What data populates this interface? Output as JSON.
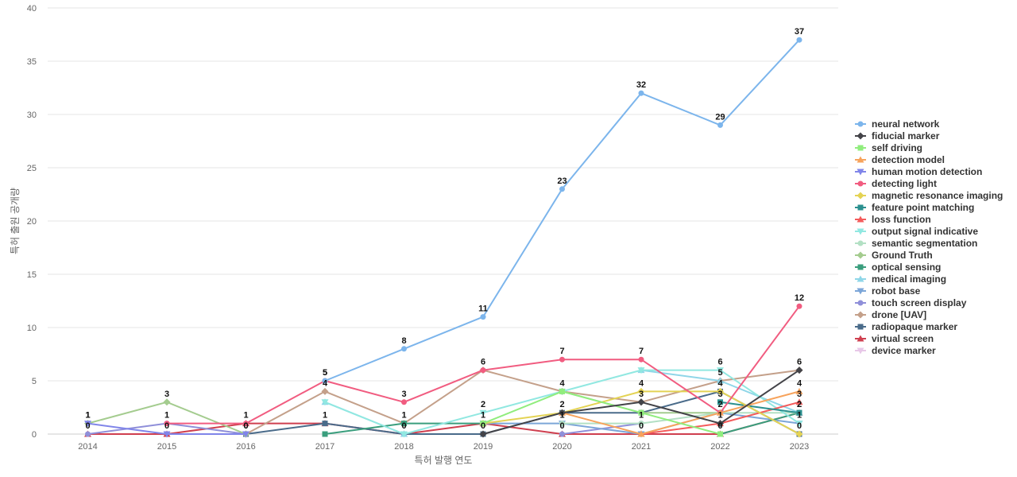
{
  "chart_data": {
    "type": "line",
    "xlabel": "특허 발행 연도",
    "ylabel": "특허 출원 공개량",
    "ylim": [
      0,
      40
    ],
    "yticks": [
      0,
      5,
      10,
      15,
      20,
      25,
      30,
      35,
      40
    ],
    "grid": true,
    "legend_position": "right",
    "categories": [
      "2014",
      "2015",
      "2016",
      "2017",
      "2018",
      "2019",
      "2020",
      "2021",
      "2022",
      "2023"
    ],
    "series": [
      {
        "name": "neural network",
        "color": "#7cb5ec",
        "marker": "circle",
        "values": [
          null,
          null,
          null,
          5,
          8,
          11,
          23,
          32,
          29,
          37
        ],
        "labels": [
          null,
          null,
          null,
          5,
          8,
          11,
          23,
          32,
          29,
          37
        ]
      },
      {
        "name": "fiducial marker",
        "color": "#434348",
        "marker": "diamond",
        "values": [
          null,
          null,
          null,
          null,
          null,
          0,
          2,
          3,
          1,
          6
        ],
        "labels": [
          null,
          null,
          null,
          null,
          null,
          null,
          null,
          null,
          null,
          6
        ]
      },
      {
        "name": "self driving",
        "color": "#90ed7d",
        "marker": "square",
        "values": [
          null,
          null,
          null,
          null,
          null,
          1,
          4,
          2,
          0,
          null
        ],
        "labels": [
          null,
          null,
          null,
          null,
          null,
          1,
          4,
          null,
          null,
          null
        ]
      },
      {
        "name": "detection model",
        "color": "#f7a35c",
        "marker": "triangle",
        "values": [
          null,
          null,
          null,
          null,
          null,
          null,
          2,
          0,
          2,
          4
        ],
        "labels": [
          null,
          null,
          null,
          null,
          null,
          null,
          2,
          null,
          null,
          4
        ]
      },
      {
        "name": "human motion detection",
        "color": "#8085e9",
        "marker": "triangle-down",
        "values": [
          1,
          0,
          0,
          null,
          null,
          null,
          null,
          null,
          null,
          null
        ],
        "labels": [
          1,
          0,
          0,
          null,
          null,
          null,
          null,
          null,
          null,
          null
        ]
      },
      {
        "name": "detecting light",
        "color": "#f15c80",
        "marker": "circle",
        "values": [
          null,
          1,
          1,
          5,
          3,
          6,
          7,
          7,
          2,
          12
        ],
        "labels": [
          null,
          1,
          1,
          5,
          3,
          6,
          7,
          7,
          null,
          12
        ]
      },
      {
        "name": "magnetic resonance imaging",
        "color": "#e4d354",
        "marker": "diamond",
        "values": [
          null,
          null,
          null,
          null,
          null,
          1,
          2,
          4,
          4,
          0
        ],
        "labels": [
          null,
          null,
          null,
          null,
          null,
          null,
          null,
          4,
          4,
          null
        ]
      },
      {
        "name": "feature point matching",
        "color": "#2b908f",
        "marker": "square",
        "values": [
          null,
          null,
          null,
          null,
          null,
          null,
          null,
          null,
          3,
          2
        ],
        "labels": [
          null,
          null,
          null,
          null,
          null,
          null,
          null,
          null,
          3,
          null
        ]
      },
      {
        "name": "loss function",
        "color": "#f45b5b",
        "marker": "triangle",
        "values": [
          null,
          null,
          null,
          null,
          null,
          null,
          null,
          0,
          1,
          3
        ],
        "labels": [
          null,
          null,
          null,
          null,
          null,
          null,
          null,
          0,
          1,
          3
        ]
      },
      {
        "name": "output signal indicative",
        "color": "#91e8e1",
        "marker": "triangle-down",
        "values": [
          null,
          null,
          null,
          3,
          0,
          2,
          4,
          6,
          6,
          1
        ],
        "labels": [
          null,
          null,
          null,
          null,
          null,
          2,
          null,
          null,
          6,
          1
        ]
      },
      {
        "name": "semantic segmentation",
        "color": "#b3e0c4",
        "marker": "circle",
        "values": [
          null,
          null,
          null,
          null,
          null,
          null,
          1,
          1,
          2,
          2
        ],
        "labels": [
          null,
          null,
          null,
          null,
          null,
          null,
          1,
          1,
          2,
          2
        ]
      },
      {
        "name": "Ground Truth",
        "color": "#a4cc8f",
        "marker": "diamond",
        "values": [
          1,
          3,
          0,
          null,
          null,
          null,
          4,
          2,
          2,
          null
        ],
        "labels": [
          1,
          3,
          null,
          null,
          null,
          null,
          null,
          null,
          null,
          null
        ]
      },
      {
        "name": "optical sensing",
        "color": "#3a9e7d",
        "marker": "square",
        "values": [
          null,
          null,
          null,
          0,
          1,
          1,
          null,
          null,
          0,
          2
        ],
        "labels": [
          null,
          null,
          null,
          null,
          null,
          null,
          null,
          null,
          null,
          null
        ]
      },
      {
        "name": "medical imaging",
        "color": "#8fd6e8",
        "marker": "triangle",
        "values": [
          null,
          null,
          null,
          3,
          0,
          null,
          null,
          6,
          5,
          2
        ],
        "labels": [
          null,
          null,
          null,
          null,
          null,
          null,
          null,
          null,
          5,
          null
        ]
      },
      {
        "name": "robot base",
        "color": "#7ca6d8",
        "marker": "triangle-down",
        "values": [
          null,
          null,
          null,
          null,
          null,
          1,
          1,
          0,
          2,
          1
        ],
        "labels": [
          null,
          null,
          null,
          null,
          null,
          null,
          null,
          null,
          null,
          null
        ]
      },
      {
        "name": "touch screen display",
        "color": "#8f8fd9",
        "marker": "circle",
        "values": [
          0,
          1,
          0,
          null,
          0,
          null,
          0,
          1,
          null,
          null
        ],
        "labels": [
          0,
          null,
          null,
          null,
          null,
          null,
          null,
          null,
          null,
          null
        ]
      },
      {
        "name": "drone [UAV]",
        "color": "#c4a08a",
        "marker": "diamond",
        "values": [
          null,
          null,
          0,
          4,
          1,
          6,
          4,
          3,
          5,
          6
        ],
        "labels": [
          null,
          null,
          null,
          4,
          1,
          null,
          null,
          3,
          null,
          null
        ]
      },
      {
        "name": "radiopaque marker",
        "color": "#4a6b8a",
        "marker": "square",
        "values": [
          null,
          null,
          0,
          1,
          0,
          0,
          2,
          2,
          4,
          0
        ],
        "labels": [
          null,
          null,
          0,
          1,
          null,
          0,
          null,
          null,
          null,
          0
        ]
      },
      {
        "name": "virtual screen",
        "color": "#cf3f4f",
        "marker": "triangle",
        "values": [
          0,
          0,
          1,
          1,
          0,
          1,
          0,
          0,
          0,
          2
        ],
        "labels": [
          null,
          null,
          null,
          null,
          0,
          null,
          0,
          null,
          0,
          2
        ]
      },
      {
        "name": "device marker",
        "color": "#e8c8e8",
        "marker": "triangle-down",
        "values": [
          null,
          null,
          null,
          null,
          null,
          null,
          null,
          null,
          null,
          null
        ],
        "labels": [
          null,
          null,
          null,
          null,
          null,
          null,
          null,
          null,
          null,
          null
        ]
      }
    ]
  }
}
